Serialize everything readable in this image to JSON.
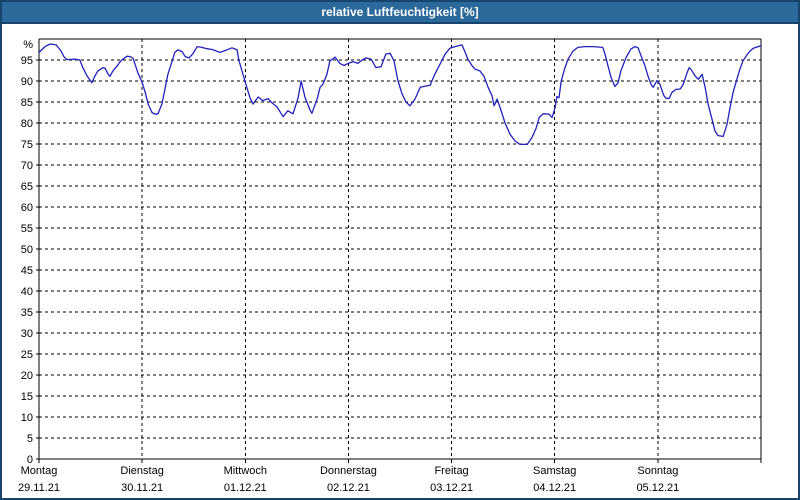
{
  "window": {
    "title": "relative Luftfeuchtigkeit [%]"
  },
  "colors": {
    "titlebar_bg": "#2b699b",
    "frame_border": "#16446e",
    "title_text": "#ffffff",
    "plot_line": "#2121bd",
    "grid": "#000000",
    "label": "#000000",
    "background": "#ffffff"
  },
  "chart_data": {
    "type": "line",
    "title": "relative Luftfeuchtigkeit [%]",
    "ylabel": "%",
    "xlabel": "",
    "ylim": [
      0,
      100
    ],
    "y_ticks": [
      0,
      5,
      10,
      15,
      20,
      25,
      30,
      35,
      40,
      45,
      50,
      55,
      60,
      65,
      70,
      75,
      80,
      85,
      90,
      95
    ],
    "y_unit_top_label": "%",
    "grid": "dashed",
    "legend_position": "none",
    "x_hours_total": 168,
    "x_days": [
      {
        "name": "Montag",
        "date": "29.11.21"
      },
      {
        "name": "Dienstag",
        "date": "30.11.21"
      },
      {
        "name": "Mittwoch",
        "date": "01.12.21"
      },
      {
        "name": "Donnerstag",
        "date": "02.12.21"
      },
      {
        "name": "Freitag",
        "date": "03.12.21"
      },
      {
        "name": "Samstag",
        "date": "04.12.21"
      },
      {
        "name": "Sonntag",
        "date": "05.12.21"
      }
    ],
    "series": [
      {
        "name": "relative Luftfeuchtigkeit [%]",
        "color": "#2121bd",
        "points": [
          [
            0,
            96.8
          ],
          [
            1.4,
            98.2
          ],
          [
            2.6,
            98.8
          ],
          [
            4,
            98.6
          ],
          [
            5.1,
            97.2
          ],
          [
            5.8,
            95.8
          ],
          [
            6.5,
            95.1
          ],
          [
            8.4,
            95.2
          ],
          [
            9.5,
            95
          ],
          [
            10.2,
            93.2
          ],
          [
            11.2,
            91.2
          ],
          [
            12.3,
            89.6
          ],
          [
            13,
            91.2
          ],
          [
            13.7,
            92.4
          ],
          [
            14.9,
            93.2
          ],
          [
            15.4,
            93
          ],
          [
            16.1,
            91.6
          ],
          [
            16.5,
            91.1
          ],
          [
            17.2,
            92.4
          ],
          [
            18.2,
            93.6
          ],
          [
            18.8,
            94.5
          ],
          [
            19.5,
            95.2
          ],
          [
            20.5,
            95.9
          ],
          [
            21.2,
            95.8
          ],
          [
            21.9,
            95.4
          ],
          [
            23,
            92
          ],
          [
            24,
            89.7
          ],
          [
            24.7,
            87.3
          ],
          [
            25.4,
            84.5
          ],
          [
            26.3,
            82.5
          ],
          [
            27,
            82.1
          ],
          [
            27.7,
            82.2
          ],
          [
            28.6,
            84.5
          ],
          [
            29.3,
            88
          ],
          [
            30,
            91.6
          ],
          [
            31,
            94.8
          ],
          [
            31.6,
            96.8
          ],
          [
            32.3,
            97.4
          ],
          [
            33.3,
            97
          ],
          [
            34,
            95.8
          ],
          [
            34.9,
            95.5
          ],
          [
            35.8,
            96.5
          ],
          [
            36.8,
            98.2
          ],
          [
            37.9,
            98
          ],
          [
            39.1,
            97.7
          ],
          [
            40.3,
            97.5
          ],
          [
            42.1,
            96.8
          ],
          [
            43.5,
            97.3
          ],
          [
            44.9,
            97.9
          ],
          [
            46.1,
            97.4
          ],
          [
            46.5,
            95
          ],
          [
            47.9,
            90
          ],
          [
            49.1,
            86
          ],
          [
            49.8,
            84.5
          ],
          [
            51,
            86.2
          ],
          [
            52.1,
            85.3
          ],
          [
            53.3,
            85.8
          ],
          [
            54.2,
            84.8
          ],
          [
            55.4,
            83.8
          ],
          [
            56.8,
            81.5
          ],
          [
            57.9,
            82.9
          ],
          [
            59.1,
            82.2
          ],
          [
            60.3,
            86
          ],
          [
            61,
            90
          ],
          [
            61.9,
            86.1
          ],
          [
            63.1,
            83
          ],
          [
            63.5,
            82.3
          ],
          [
            64.7,
            85.7
          ],
          [
            65.4,
            88.5
          ],
          [
            66.1,
            89.3
          ],
          [
            67,
            91.6
          ],
          [
            67.7,
            94.8
          ],
          [
            68.9,
            95.7
          ],
          [
            70,
            94.2
          ],
          [
            71,
            93.7
          ],
          [
            71.9,
            94.2
          ],
          [
            73.1,
            94.6
          ],
          [
            74.2,
            94.2
          ],
          [
            75.2,
            95
          ],
          [
            76.1,
            95.5
          ],
          [
            77.3,
            95.2
          ],
          [
            78.4,
            93.2
          ],
          [
            79.6,
            93.4
          ],
          [
            80.7,
            96.4
          ],
          [
            81.7,
            96.6
          ],
          [
            82.6,
            94.8
          ],
          [
            83.5,
            90.1
          ],
          [
            84.5,
            86.9
          ],
          [
            85.4,
            85
          ],
          [
            86.3,
            84.1
          ],
          [
            87.5,
            85.7
          ],
          [
            88.7,
            88.5
          ],
          [
            90.1,
            88.8
          ],
          [
            91,
            89
          ],
          [
            92.1,
            91.6
          ],
          [
            93.3,
            94
          ],
          [
            94.5,
            96.4
          ],
          [
            95.6,
            97.8
          ],
          [
            96.8,
            98.2
          ],
          [
            98.4,
            98.6
          ],
          [
            99.1,
            97
          ],
          [
            99.8,
            95.2
          ],
          [
            100.8,
            93.6
          ],
          [
            101.5,
            92.8
          ],
          [
            102.6,
            92.4
          ],
          [
            103.6,
            91
          ],
          [
            104.5,
            88.5
          ],
          [
            105.4,
            86.5
          ],
          [
            105.9,
            84.1
          ],
          [
            106.6,
            85.7
          ],
          [
            107.3,
            83.7
          ],
          [
            108.4,
            80.1
          ],
          [
            109.6,
            77.3
          ],
          [
            110.8,
            75.7
          ],
          [
            111.9,
            74.9
          ],
          [
            113.6,
            74.9
          ],
          [
            114.7,
            76.5
          ],
          [
            115.7,
            78.8
          ],
          [
            116.4,
            81.3
          ],
          [
            117.3,
            82.2
          ],
          [
            118.7,
            82.1
          ],
          [
            119.4,
            81.3
          ],
          [
            120.1,
            83.7
          ],
          [
            120.5,
            86.3
          ],
          [
            121,
            86
          ],
          [
            121.5,
            90
          ],
          [
            122.4,
            93.2
          ],
          [
            123.1,
            95.2
          ],
          [
            124.3,
            97.2
          ],
          [
            125.4,
            98
          ],
          [
            127.1,
            98.2
          ],
          [
            128.7,
            98.2
          ],
          [
            130.1,
            98.1
          ],
          [
            131.2,
            98
          ],
          [
            131.7,
            96.4
          ],
          [
            132.4,
            93.6
          ],
          [
            133.1,
            90.9
          ],
          [
            134,
            88.7
          ],
          [
            134.7,
            89.5
          ],
          [
            135.4,
            92.4
          ],
          [
            136.6,
            95.6
          ],
          [
            137.7,
            97.6
          ],
          [
            138.7,
            98.2
          ],
          [
            139.4,
            97.9
          ],
          [
            140.1,
            96
          ],
          [
            141,
            93.6
          ],
          [
            141.7,
            91.2
          ],
          [
            142.4,
            89.2
          ],
          [
            142.9,
            88.5
          ],
          [
            143.8,
            90.1
          ],
          [
            144.5,
            89.2
          ],
          [
            145,
            87.6
          ],
          [
            145.4,
            86.5
          ],
          [
            145.9,
            85.9
          ],
          [
            146.6,
            85.8
          ],
          [
            147.3,
            87.3
          ],
          [
            148.2,
            88
          ],
          [
            149.2,
            88.1
          ],
          [
            149.9,
            89.2
          ],
          [
            150.8,
            92
          ],
          [
            151.3,
            93.2
          ],
          [
            151.7,
            92.8
          ],
          [
            152.7,
            91.2
          ],
          [
            153.4,
            90.4
          ],
          [
            154.3,
            91.6
          ],
          [
            155,
            88.5
          ],
          [
            155.7,
            84.5
          ],
          [
            156.6,
            80.9
          ],
          [
            157.3,
            78.1
          ],
          [
            158,
            77
          ],
          [
            159.2,
            76.8
          ],
          [
            160.1,
            79.7
          ],
          [
            160.8,
            83.7
          ],
          [
            161.5,
            87.3
          ],
          [
            162.4,
            90.4
          ],
          [
            163.1,
            92.8
          ],
          [
            163.8,
            94.8
          ],
          [
            164.8,
            96.3
          ],
          [
            165.5,
            97.2
          ],
          [
            166.2,
            97.8
          ],
          [
            167.1,
            98.1
          ],
          [
            168,
            98.4
          ]
        ]
      }
    ]
  }
}
